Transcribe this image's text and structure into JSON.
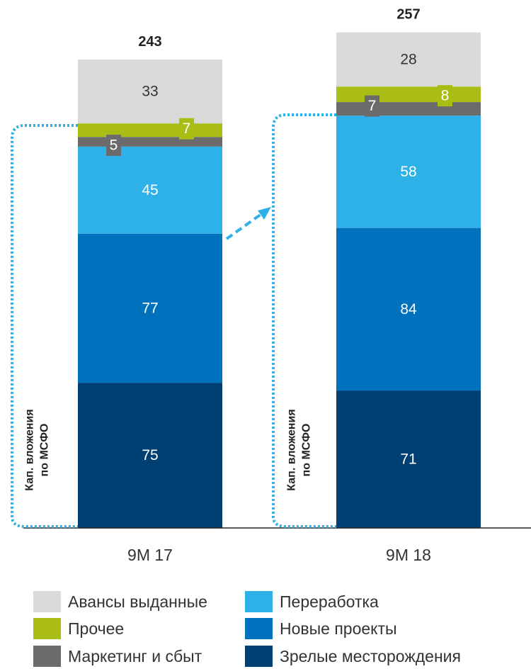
{
  "chart_data": {
    "type": "bar",
    "stacked": true,
    "title": "",
    "xlabel": "",
    "ylabel": "",
    "categories": [
      "9M 17",
      "9M 18"
    ],
    "totals": [
      243,
      257
    ],
    "series": [
      {
        "name": "Зрелые месторождения",
        "values": [
          75,
          71
        ],
        "color": "#003f72"
      },
      {
        "name": "Новые проекты",
        "values": [
          77,
          84
        ],
        "color": "#0071bc"
      },
      {
        "name": "Переработка",
        "values": [
          45,
          58
        ],
        "color": "#2eb0e8"
      },
      {
        "name": "Маркетинг и сбыт",
        "values": [
          5,
          7
        ],
        "color": "#6b6b6b"
      },
      {
        "name": "Прочее",
        "values": [
          7,
          8
        ],
        "color": "#a9bd15"
      },
      {
        "name": "Авансы выданные",
        "values": [
          33,
          28
        ],
        "color": "#d9d9d9"
      }
    ],
    "ylim": [
      0,
      257
    ],
    "grid": false,
    "legend_position": "bottom",
    "brackets": [
      {
        "label_line1": "Кап. вложения",
        "label_line2": "по МСФО"
      },
      {
        "label_line1": "Кап. вложения",
        "label_line2": "по МСФО"
      }
    ],
    "bracket_color": "#2eb0e8",
    "growth_arrow": true
  },
  "legend": {
    "items": [
      {
        "label": "Авансы выданные",
        "color": "#d9d9d9"
      },
      {
        "label": "Прочее",
        "color": "#a9bd15"
      },
      {
        "label": "Маркетинг и сбыт",
        "color": "#6b6b6b"
      },
      {
        "label": "Переработка",
        "color": "#2eb0e8"
      },
      {
        "label": "Новые проекты",
        "color": "#0071bc"
      },
      {
        "label": "Зрелые месторождения",
        "color": "#003f72"
      }
    ]
  }
}
